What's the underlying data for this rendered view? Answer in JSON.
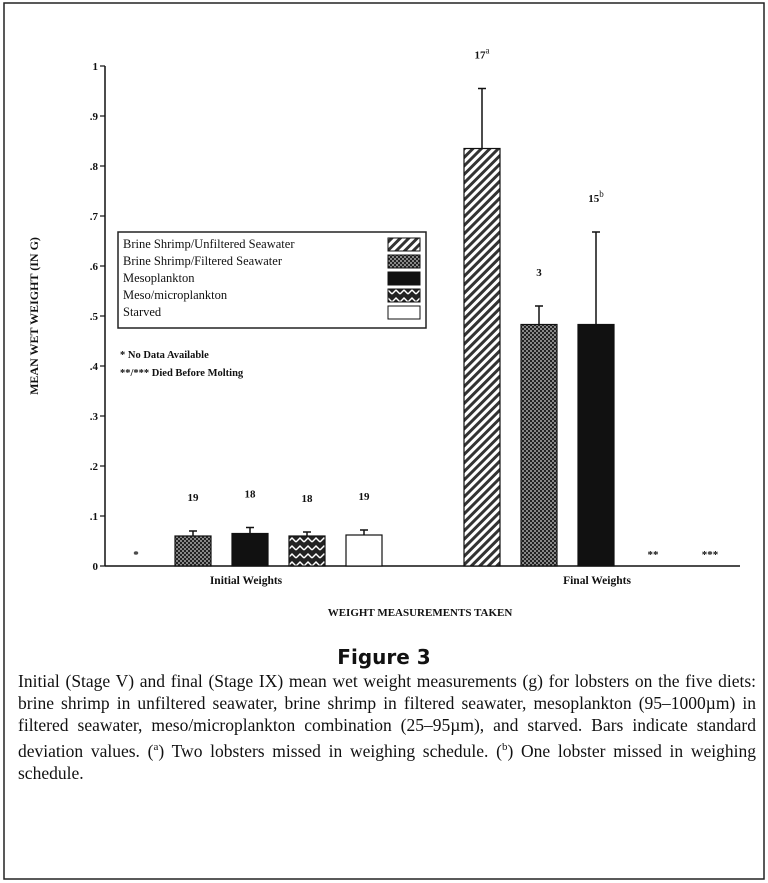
{
  "chart_data": {
    "type": "bar",
    "figure_label": "Figure 3",
    "xlabel": "WEIGHT MEASUREMENTS TAKEN",
    "ylabel": "MEAN WET WEIGHT (IN G)",
    "categories": [
      "Initial Weights",
      "Final Weights"
    ],
    "ylim": [
      0,
      1
    ],
    "yticks": [
      0,
      {
        "value": 0.1,
        "label": ".1"
      },
      {
        "value": 0.2,
        "label": ".2"
      },
      {
        "value": 0.3,
        "label": ".3"
      },
      {
        "value": 0.4,
        "label": ".4"
      },
      {
        "value": 0.5,
        "label": ".5"
      },
      {
        "value": 0.6,
        "label": ".6"
      },
      {
        "value": 0.7,
        "label": ".7"
      },
      {
        "value": 0.8,
        "label": ".8"
      },
      {
        "value": 0.9,
        "label": ".9"
      },
      1
    ],
    "series": [
      {
        "name": "Brine Shrimp/Unfiltered Seawater",
        "pattern": "hatch",
        "color": "#222222",
        "values": [
          null,
          0.835
        ],
        "errors": [
          null,
          0.12
        ],
        "labels": [
          "*",
          "17"
        ],
        "label_notes": [
          null,
          "a"
        ]
      },
      {
        "name": "Brine Shrimp/Filtered Seawater",
        "pattern": "checker",
        "color": "#222222",
        "values": [
          0.06,
          0.483
        ],
        "errors": [
          0.01,
          0.037
        ],
        "labels": [
          "19",
          "3"
        ],
        "label_notes": [
          null,
          null
        ]
      },
      {
        "name": "Mesoplankton",
        "pattern": "solid",
        "color": "#111111",
        "values": [
          0.065,
          0.483
        ],
        "errors": [
          0.012,
          0.185
        ],
        "labels": [
          "18",
          "15"
        ],
        "label_notes": [
          null,
          "b"
        ]
      },
      {
        "name": "Meso/microplankton",
        "pattern": "zigzag",
        "color": "#222222",
        "values": [
          0.06,
          null
        ],
        "errors": [
          0.008,
          null
        ],
        "labels": [
          "18",
          "**"
        ],
        "label_notes": [
          null,
          null
        ]
      },
      {
        "name": "Starved",
        "pattern": "none",
        "color": "#ffffff",
        "values": [
          0.062,
          null
        ],
        "errors": [
          0.01,
          null
        ],
        "labels": [
          "19",
          "***"
        ],
        "label_notes": [
          null,
          null
        ]
      }
    ],
    "footnotes": [
      "* No Data Available",
      "**/*** Died Before Molting"
    ],
    "caption": [
      {
        "text": "Initial (Stage V) and final (Stage IX) mean wet weight measurements (g) for lobsters on the five diets: brine shrimp in unfiltered seawater, brine shrimp in filtered seawater, mesoplankton (95–1000µm) in filtered seawater, meso/microplankton combination (25–95µm), and starved. Bars indicate standard deviation values. ("
      },
      {
        "sup": "a"
      },
      {
        "text": ") Two lobsters missed in weighing schedule. ("
      },
      {
        "sup": "b"
      },
      {
        "text": ") One lobster missed in weighing schedule."
      }
    ]
  }
}
